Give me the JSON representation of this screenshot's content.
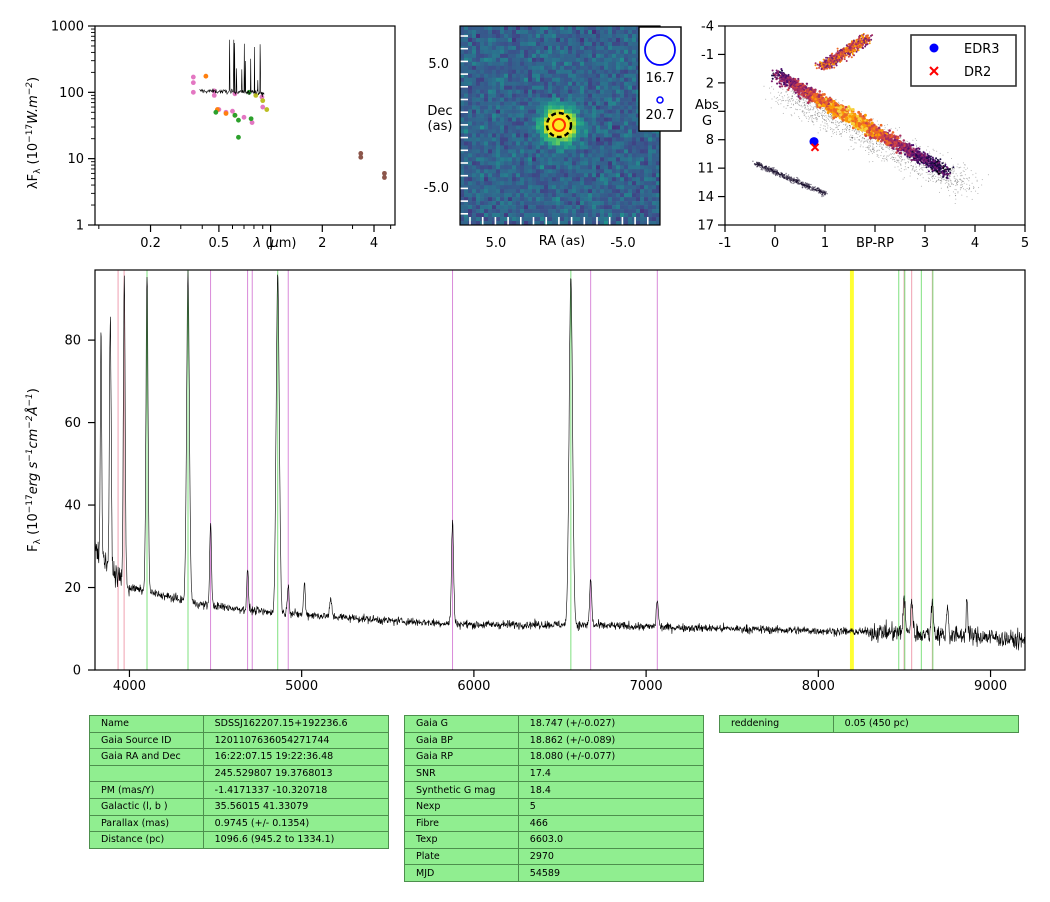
{
  "colors": {
    "hydrogen_line": "#7fe07f",
    "helium_line": "#d98ad9",
    "calcium_line": "#f0a0b0",
    "telluric_band": "#ffff33",
    "table_bg": "#90ee90",
    "edr3_marker": "#0000ff",
    "dr2_marker": "#ff0000"
  },
  "chart_data": [
    {
      "id": "sed",
      "type": "scatter",
      "ylabel": "λF_λ (10^-17 W.m^-2)",
      "xlabel": "λ (μm)",
      "x_scale": "log",
      "y_scale": "log",
      "xlim": [
        0.095,
        5.3
      ],
      "ylim": [
        1,
        1000
      ],
      "xtick_labels": [
        "0.2",
        "0.5",
        "1",
        "2",
        "4"
      ],
      "xtick_values": [
        0.2,
        0.5,
        1,
        2,
        4
      ],
      "ytick_labels": [
        "1",
        "10",
        "100",
        "1000"
      ],
      "ytick_values": [
        1,
        10,
        100,
        1000
      ],
      "series": [
        {
          "color": "#e377c2",
          "points": [
            [
              0.355,
              170
            ],
            [
              0.355,
              140
            ],
            [
              0.355,
              100
            ],
            [
              0.47,
              105
            ],
            [
              0.47,
              90
            ],
            [
              0.62,
              95
            ],
            [
              0.75,
              100
            ],
            [
              0.89,
              85
            ],
            [
              0.5,
              55
            ],
            [
              0.55,
              50
            ],
            [
              0.6,
              52
            ],
            [
              0.7,
              42
            ],
            [
              0.78,
              35
            ],
            [
              0.9,
              60
            ]
          ]
        },
        {
          "color": "#ff7f0e",
          "points": [
            [
              0.42,
              175
            ],
            [
              0.49,
              55
            ],
            [
              0.55,
              48
            ],
            [
              0.62,
              45
            ]
          ]
        },
        {
          "color": "#2ca02c",
          "points": [
            [
              0.48,
              50
            ],
            [
              0.62,
              45
            ],
            [
              0.65,
              38
            ],
            [
              0.77,
              40
            ],
            [
              0.75,
              100
            ],
            [
              0.65,
              21
            ]
          ]
        },
        {
          "color": "#bcbd22",
          "points": [
            [
              0.82,
              90
            ],
            [
              0.9,
              75
            ],
            [
              0.95,
              55
            ]
          ]
        },
        {
          "color": "#8c564b",
          "points": [
            [
              3.35,
              12
            ],
            [
              3.35,
              10.5
            ],
            [
              4.6,
              6
            ],
            [
              4.6,
              5.2
            ]
          ]
        }
      ]
    },
    {
      "id": "image",
      "type": "heatmap",
      "xlabel": "RA (as)",
      "ylabel": "Dec\n(as)",
      "xtick_labels": [
        "5.0",
        "-5.0"
      ],
      "ytick_labels": [
        "5.0",
        "-5.0"
      ],
      "legend": {
        "entries": [
          "16.7",
          "20.7"
        ],
        "position": "right"
      }
    },
    {
      "id": "hr",
      "type": "scatter",
      "xlabel": "BP-RP",
      "ylabel": "Abs\nG",
      "xlim": [
        -1,
        5
      ],
      "ylim": [
        17,
        -4
      ],
      "xtick_labels": [
        "-1",
        "0",
        "1",
        "BP-RP",
        "3",
        "4",
        "5"
      ],
      "ytick_labels": [
        "-4",
        "-1",
        "2",
        "5",
        "8",
        "11",
        "14",
        "17"
      ],
      "legend": {
        "position": "top-right",
        "entries": [
          {
            "name": "EDR3",
            "color": "#0000ff",
            "marker": "circle"
          },
          {
            "name": "DR2",
            "color": "#ff0000",
            "marker": "cross"
          }
        ]
      },
      "points": [
        {
          "series": "EDR3",
          "x": 0.78,
          "y": 8.2
        },
        {
          "series": "DR2",
          "x": 0.8,
          "y": 8.8
        }
      ]
    },
    {
      "id": "spectrum",
      "type": "line",
      "ylabel": "F_λ (10^-17 erg s^-1 cm^-2 Å^-1)",
      "xlim": [
        3800,
        9200
      ],
      "ylim": [
        0,
        97
      ],
      "xtick_labels": [
        "4000",
        "5000",
        "6000",
        "7000",
        "8000",
        "9000"
      ],
      "xtick_values": [
        4000,
        5000,
        6000,
        7000,
        8000,
        9000
      ],
      "ytick_labels": [
        "0",
        "20",
        "40",
        "60",
        "80"
      ],
      "ytick_values": [
        0,
        20,
        40,
        60,
        80
      ],
      "continuum": [
        [
          3800,
          30
        ],
        [
          3900,
          24
        ],
        [
          4000,
          20
        ],
        [
          4200,
          18
        ],
        [
          4400,
          16
        ],
        [
          4600,
          15
        ],
        [
          4800,
          14
        ],
        [
          5000,
          13.5
        ],
        [
          5500,
          12
        ],
        [
          6000,
          11
        ],
        [
          6500,
          11
        ],
        [
          7000,
          10.5
        ],
        [
          7500,
          10
        ],
        [
          8000,
          9.5
        ],
        [
          8500,
          9
        ],
        [
          9000,
          8
        ],
        [
          9200,
          7
        ]
      ],
      "emission_lines": [
        {
          "x": 3835,
          "peak": 82,
          "w": 4
        },
        {
          "x": 3889,
          "peak": 85,
          "w": 5
        },
        {
          "x": 3970,
          "peak": 96,
          "w": 5
        },
        {
          "x": 4102,
          "peak": 96,
          "w": 6
        },
        {
          "x": 4340,
          "peak": 96,
          "w": 8
        },
        {
          "x": 4471,
          "peak": 36,
          "w": 5
        },
        {
          "x": 4686,
          "peak": 24,
          "w": 5
        },
        {
          "x": 4861,
          "peak": 96,
          "w": 9
        },
        {
          "x": 4922,
          "peak": 21,
          "w": 5
        },
        {
          "x": 5016,
          "peak": 21,
          "w": 5
        },
        {
          "x": 5169,
          "peak": 17,
          "w": 6
        },
        {
          "x": 5876,
          "peak": 36,
          "w": 6
        },
        {
          "x": 6563,
          "peak": 95,
          "w": 10
        },
        {
          "x": 6678,
          "peak": 22,
          "w": 6
        },
        {
          "x": 7065,
          "peak": 17,
          "w": 6
        },
        {
          "x": 8498,
          "peak": 18,
          "w": 6
        },
        {
          "x": 8542,
          "peak": 17,
          "w": 6
        },
        {
          "x": 8662,
          "peak": 17,
          "w": 6
        },
        {
          "x": 8750,
          "peak": 16,
          "w": 5
        },
        {
          "x": 8863,
          "peak": 17,
          "w": 5
        }
      ],
      "marker_lines": [
        {
          "x": 3934,
          "kind": "calcium"
        },
        {
          "x": 3969,
          "kind": "calcium"
        },
        {
          "x": 4102,
          "kind": "hydrogen"
        },
        {
          "x": 4340,
          "kind": "hydrogen"
        },
        {
          "x": 4471,
          "kind": "helium"
        },
        {
          "x": 4686,
          "kind": "helium"
        },
        {
          "x": 4713,
          "kind": "helium"
        },
        {
          "x": 4861,
          "kind": "hydrogen"
        },
        {
          "x": 4922,
          "kind": "helium"
        },
        {
          "x": 5876,
          "kind": "helium"
        },
        {
          "x": 6563,
          "kind": "hydrogen"
        },
        {
          "x": 6678,
          "kind": "helium"
        },
        {
          "x": 7065,
          "kind": "helium"
        },
        {
          "x": 8190,
          "kind": "telluric"
        },
        {
          "x": 8200,
          "kind": "telluric"
        },
        {
          "x": 8467,
          "kind": "hydrogen"
        },
        {
          "x": 8498,
          "kind": "calcium"
        },
        {
          "x": 8502,
          "kind": "hydrogen"
        },
        {
          "x": 8542,
          "kind": "calcium"
        },
        {
          "x": 8598,
          "kind": "hydrogen"
        },
        {
          "x": 8662,
          "kind": "calcium"
        },
        {
          "x": 8665,
          "kind": "hydrogen"
        }
      ]
    }
  ],
  "tables": {
    "left": [
      [
        "Name",
        "SDSSJ162207.15+192236.6"
      ],
      [
        "Gaia Source ID",
        "1201107636054271744"
      ],
      [
        "Gaia RA and Dec",
        "16:22:07.15    19:22:36.48"
      ],
      [
        "",
        "245.529807    19.3768013"
      ],
      [
        "PM (mas/Y)",
        "-1.4171337    -10.320718"
      ],
      [
        "Galactic (l, b )",
        "35.56015    41.33079"
      ],
      [
        "Parallax (mas)",
        "0.9745 (+/- 0.1354)"
      ],
      [
        "Distance (pc)",
        "1096.6 (945.2 to 1334.1)"
      ]
    ],
    "middle": [
      [
        "Gaia G",
        "18.747 (+/-0.027)"
      ],
      [
        "Gaia BP",
        "18.862 (+/-0.089)"
      ],
      [
        "Gaia RP",
        "18.080 (+/-0.077)"
      ],
      [
        "SNR",
        "17.4"
      ],
      [
        "Synthetic G mag",
        "18.4"
      ],
      [
        "Nexp",
        "5"
      ],
      [
        "Fibre",
        "466"
      ],
      [
        "Texp",
        "6603.0"
      ],
      [
        "Plate",
        "2970"
      ],
      [
        "MJD",
        "54589"
      ]
    ],
    "right": [
      [
        "reddening",
        "0.05 (450 pc)"
      ]
    ]
  }
}
